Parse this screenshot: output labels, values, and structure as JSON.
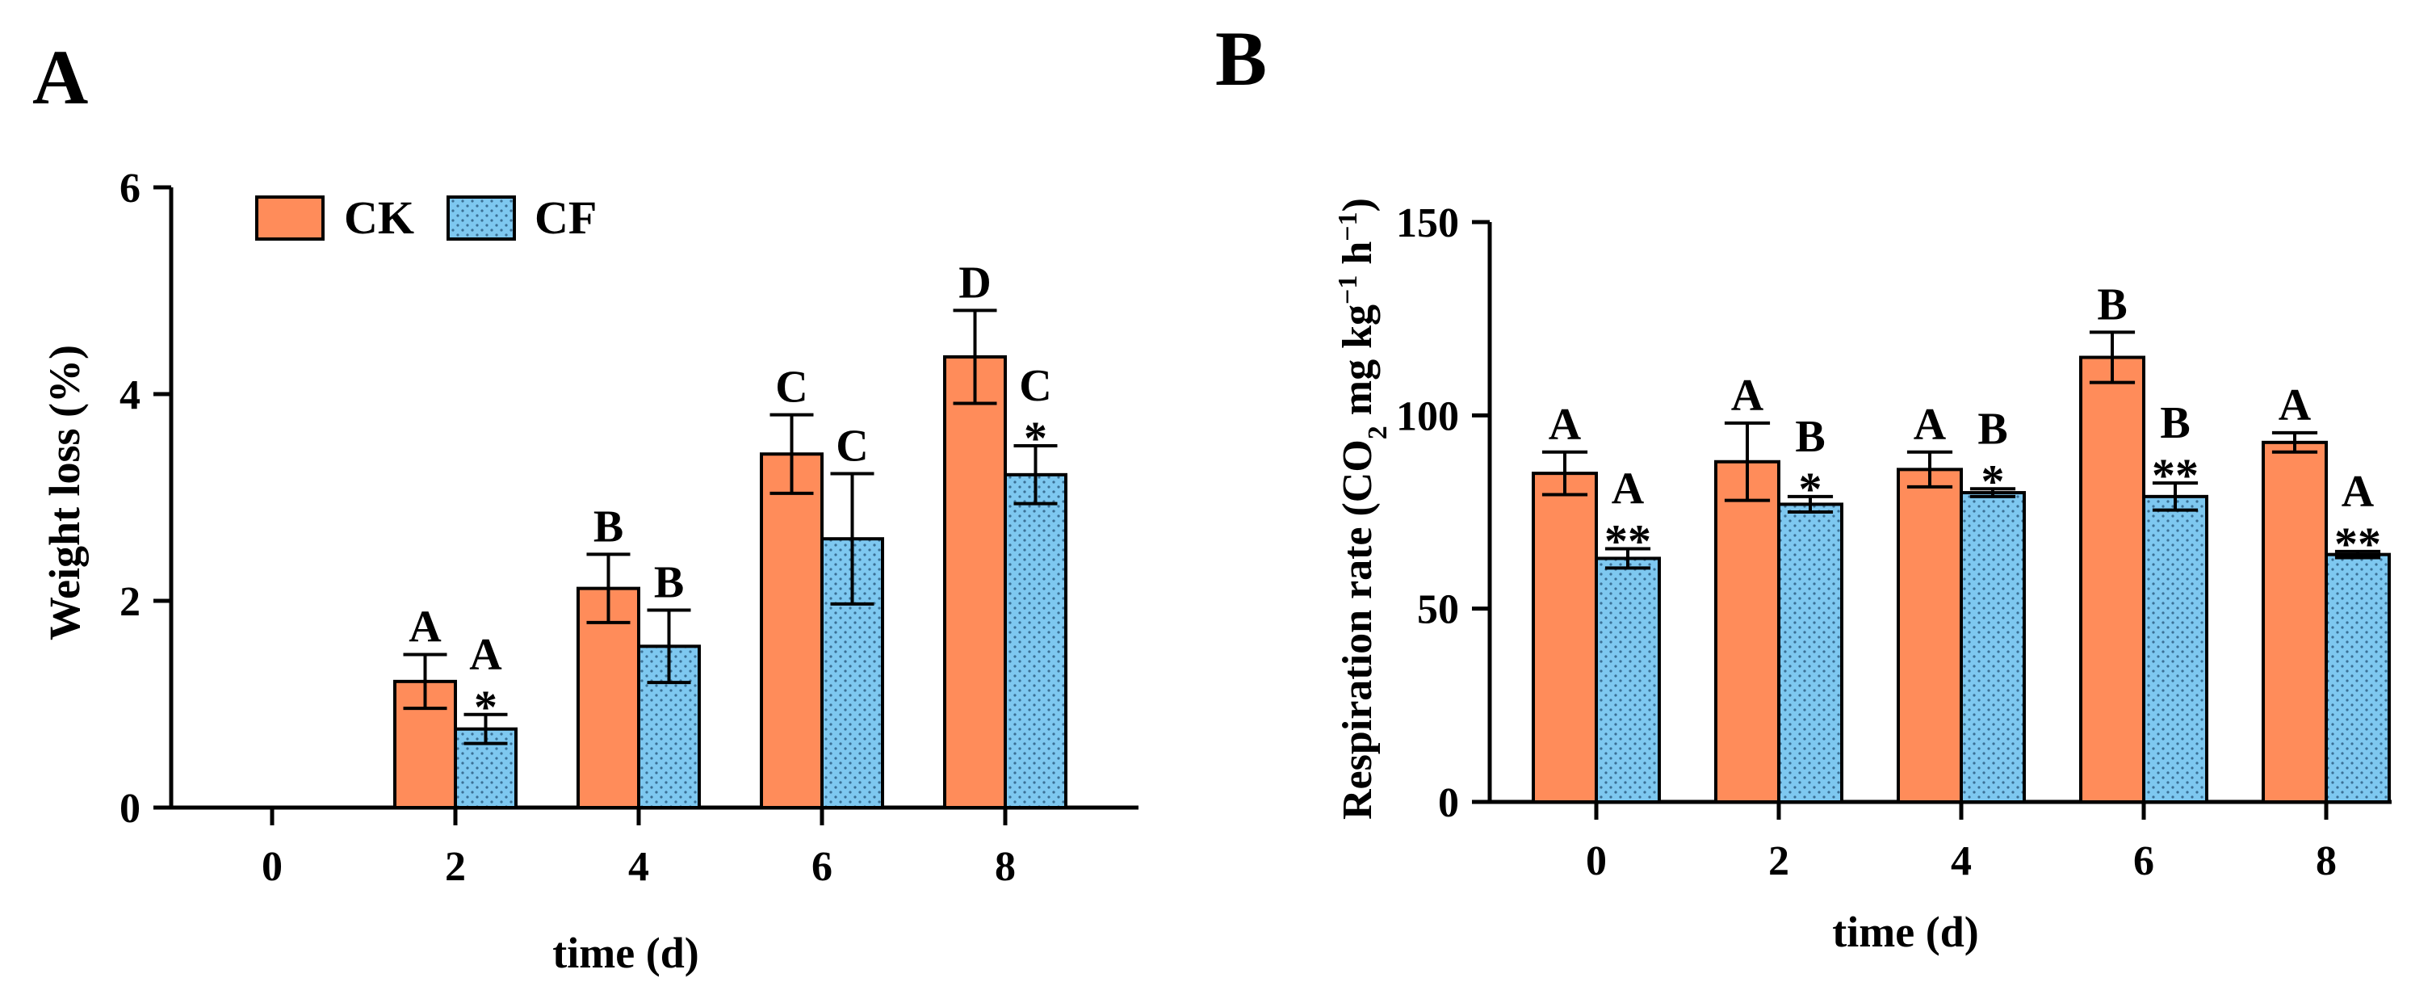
{
  "colors": {
    "ck": "#FF8C5A",
    "cf": "#7EC8F0",
    "cf_dot": "#3a6f94",
    "axis": "#000000"
  },
  "legend": {
    "ck": "CK",
    "cf": "CF"
  },
  "chart_data": [
    {
      "panel": "A",
      "type": "bar",
      "xlabel": "time (d)",
      "ylabel": "Weight loss (%)",
      "ylim": [
        0,
        6
      ],
      "yticks": [
        "0",
        "2",
        "4",
        "6"
      ],
      "categories": [
        "0",
        "2",
        "4",
        "6",
        "8"
      ],
      "legend_position": "top-left",
      "series": [
        {
          "name": "CK",
          "values": [
            null,
            1.22,
            2.12,
            3.42,
            4.36
          ],
          "errors": [
            null,
            0.26,
            0.33,
            0.38,
            0.45
          ],
          "letters": [
            "",
            "A",
            "B",
            "C",
            "D"
          ],
          "marks": [
            "",
            "",
            "",
            "",
            ""
          ]
        },
        {
          "name": "CF",
          "values": [
            null,
            0.76,
            1.56,
            2.6,
            3.22
          ],
          "errors": [
            null,
            0.14,
            0.35,
            0.63,
            0.28
          ],
          "letters": [
            "",
            "A",
            "B",
            "C",
            "C"
          ],
          "marks": [
            "",
            "*",
            "",
            "",
            "*"
          ]
        }
      ]
    },
    {
      "panel": "B",
      "type": "bar",
      "xlabel": "time (d)",
      "ylabel_parts": [
        "Respiration rate (CO",
        "2",
        " mg kg",
        "−1",
        " h",
        "−1",
        ")"
      ],
      "ylim": [
        0,
        150
      ],
      "yticks": [
        "0",
        "50",
        "100",
        "150"
      ],
      "categories": [
        "0",
        "2",
        "4",
        "6",
        "8"
      ],
      "series": [
        {
          "name": "CK",
          "values": [
            85,
            88,
            86,
            115,
            93
          ],
          "errors": [
            5.5,
            10,
            4.5,
            6.5,
            2.5
          ],
          "letters": [
            "A",
            "A",
            "A",
            "B",
            "A"
          ],
          "marks": [
            "",
            "",
            "",
            "",
            ""
          ]
        },
        {
          "name": "CF",
          "values": [
            63,
            77,
            80,
            79,
            64
          ],
          "errors": [
            2.5,
            2,
            1,
            3.5,
            0.8
          ],
          "letters": [
            "A",
            "B",
            "B",
            "B",
            "A"
          ],
          "marks": [
            "**",
            "*",
            "*",
            "**",
            "**"
          ]
        }
      ]
    }
  ]
}
